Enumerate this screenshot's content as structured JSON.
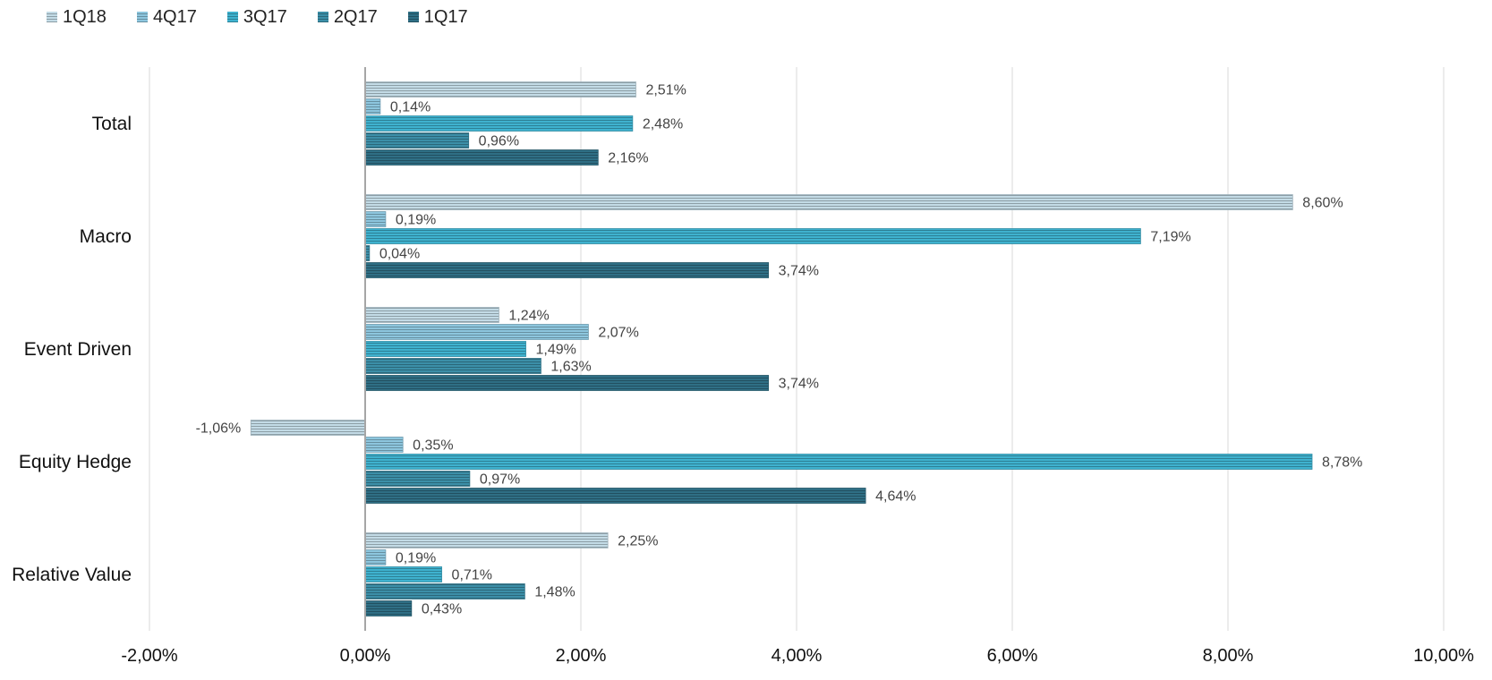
{
  "chart_data": {
    "type": "bar",
    "orientation": "horizontal",
    "categories": [
      "Total",
      "Macro",
      "Event Driven",
      "Equity Hedge",
      "Relative Value"
    ],
    "series": [
      {
        "name": "1Q18",
        "values": [
          2.51,
          8.6,
          1.24,
          -1.06,
          2.25
        ],
        "labels": [
          "2,51%",
          "8,60%",
          "1,24%",
          "-1,06%",
          "2,25%"
        ]
      },
      {
        "name": "4Q17",
        "values": [
          0.14,
          0.19,
          2.07,
          0.35,
          0.19
        ],
        "labels": [
          "0,14%",
          "0,19%",
          "2,07%",
          "0,35%",
          "0,19%"
        ]
      },
      {
        "name": "3Q17",
        "values": [
          2.48,
          7.19,
          1.49,
          8.78,
          0.71
        ],
        "labels": [
          "2,48%",
          "7,19%",
          "1,49%",
          "8,78%",
          "0,71%"
        ]
      },
      {
        "name": "2Q17",
        "values": [
          0.96,
          0.04,
          1.63,
          0.97,
          1.48
        ],
        "labels": [
          "0,96%",
          "0,04%",
          "1,63%",
          "0,97%",
          "1,48%"
        ]
      },
      {
        "name": "1Q17",
        "values": [
          2.16,
          3.74,
          3.74,
          4.64,
          0.43
        ],
        "labels": [
          "2,16%",
          "3,74%",
          "3,74%",
          "4,64%",
          "0,43%"
        ]
      }
    ],
    "series_colors": [
      "#c3dbe6",
      "#8dc6de",
      "#3fb2cf",
      "#3c8fa8",
      "#2f6f85"
    ],
    "xlim": [
      -2,
      10
    ],
    "x_ticks": [
      -2,
      0,
      2,
      4,
      6,
      8,
      10
    ],
    "x_tick_labels": [
      "-2,00%",
      "0,00%",
      "2,00%",
      "4,00%",
      "6,00%",
      "8,00%",
      "10,00%"
    ],
    "grid": true,
    "legend_position": "top-left",
    "title": "",
    "xlabel": "",
    "ylabel": ""
  }
}
